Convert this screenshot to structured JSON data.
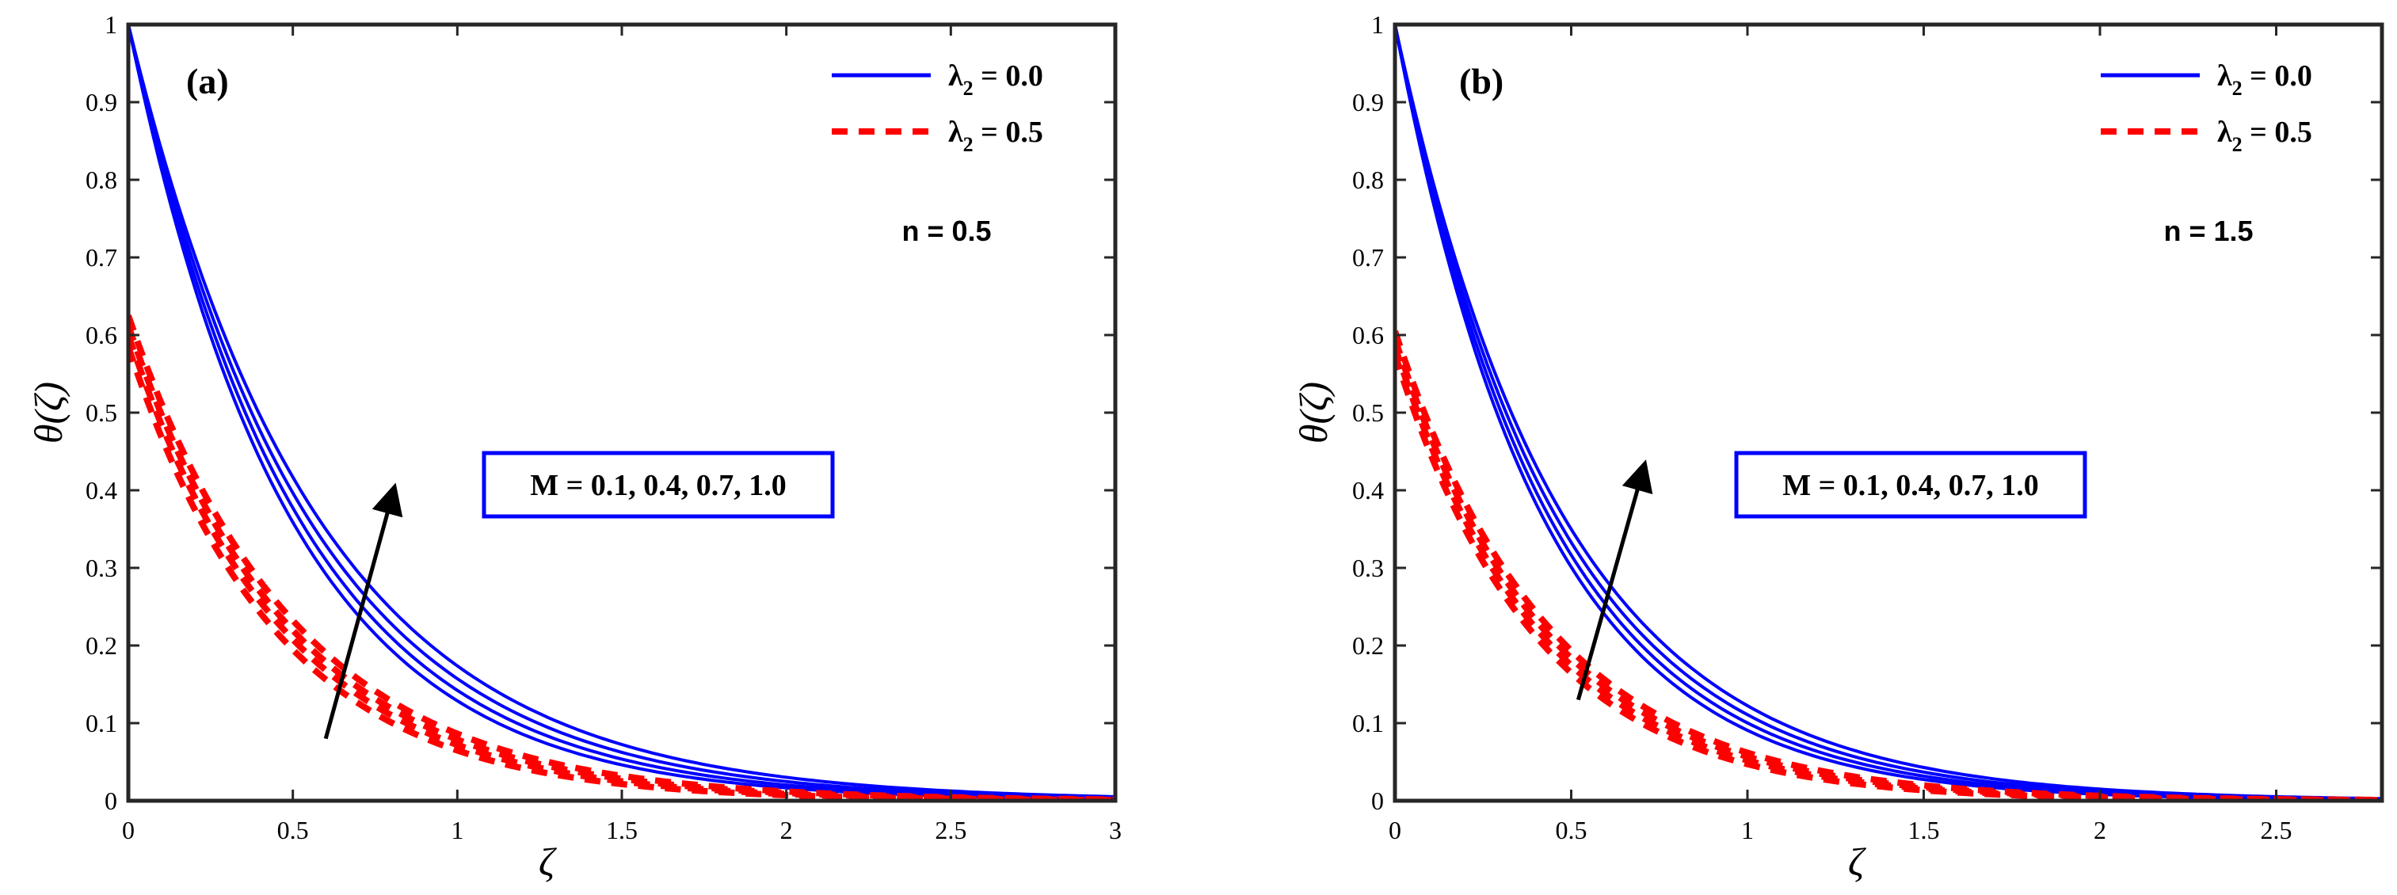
{
  "chart_data": [
    {
      "type": "line",
      "panel_label": "(a)",
      "param_text": "n = 0.5",
      "annotation": "M = 0.1, 0.4, 0.7, 1.0",
      "xlabel": "ζ",
      "ylabel": "θ(ζ)",
      "xlim": [
        0,
        3
      ],
      "ylim": [
        0,
        1
      ],
      "xticks": [
        "0",
        "0.5",
        "1",
        "1.5",
        "2",
        "2.5",
        "3"
      ],
      "yticks": [
        "0",
        "0.1",
        "0.2",
        "0.3",
        "0.4",
        "0.5",
        "0.6",
        "0.7",
        "0.8",
        "0.9",
        "1"
      ],
      "legend": [
        {
          "name": "λ",
          "sub": "2",
          "value": " = 0.0",
          "color": "#0000ff",
          "style": "solid"
        },
        {
          "name": "λ",
          "sub": "2",
          "value": " = 0.5",
          "color": "#ff0000",
          "style": "dashed"
        }
      ],
      "series": [
        {
          "name": "λ2 = 0.0, M = 0.1",
          "color": "#0000ff",
          "style": "solid",
          "y0": 1.0,
          "decay": 2.05
        },
        {
          "name": "λ2 = 0.0, M = 0.4",
          "color": "#0000ff",
          "style": "solid",
          "y0": 1.0,
          "decay": 1.95
        },
        {
          "name": "λ2 = 0.0, M = 0.7",
          "color": "#0000ff",
          "style": "solid",
          "y0": 1.0,
          "decay": 1.85
        },
        {
          "name": "λ2 = 0.0, M = 1.0",
          "color": "#0000ff",
          "style": "solid",
          "y0": 1.0,
          "decay": 1.75
        },
        {
          "name": "λ2 = 0.5, M = 0.1",
          "color": "#ff0000",
          "style": "dashed",
          "y0": 0.585,
          "decay": 2.2
        },
        {
          "name": "λ2 = 0.5, M = 0.4",
          "color": "#ff0000",
          "style": "dashed",
          "y0": 0.6,
          "decay": 2.12
        },
        {
          "name": "λ2 = 0.5, M = 0.7",
          "color": "#ff0000",
          "style": "dashed",
          "y0": 0.612,
          "decay": 2.05
        },
        {
          "name": "λ2 = 0.5, M = 1.0",
          "color": "#ff0000",
          "style": "dashed",
          "y0": 0.625,
          "decay": 1.98
        }
      ],
      "arrow": {
        "from": [
          0.6,
          0.08
        ],
        "to": [
          0.8,
          0.39
        ]
      }
    },
    {
      "type": "line",
      "panel_label": "(b)",
      "param_text": "n = 1.5",
      "annotation": "M = 0.1, 0.4, 0.7, 1.0",
      "xlabel": "ζ",
      "ylabel": "θ(ζ)",
      "xlim": [
        0,
        2.8
      ],
      "ylim": [
        0,
        1
      ],
      "xticks": [
        "0",
        "0.5",
        "1",
        "1.5",
        "2",
        "2.5"
      ],
      "yticks": [
        "0",
        "0.1",
        "0.2",
        "0.3",
        "0.4",
        "0.5",
        "0.6",
        "0.7",
        "0.8",
        "0.9",
        "1"
      ],
      "legend": [
        {
          "name": "λ",
          "sub": "2",
          "value": " = 0.0",
          "color": "#0000ff",
          "style": "solid"
        },
        {
          "name": "λ",
          "sub": "2",
          "value": " = 0.5",
          "color": "#ff0000",
          "style": "dashed"
        }
      ],
      "series": [
        {
          "name": "λ2 = 0.0, M = 0.1",
          "color": "#0000ff",
          "style": "solid",
          "y0": 1.0,
          "decay": 2.4
        },
        {
          "name": "λ2 = 0.0, M = 0.4",
          "color": "#0000ff",
          "style": "solid",
          "y0": 1.0,
          "decay": 2.3
        },
        {
          "name": "λ2 = 0.0, M = 0.7",
          "color": "#0000ff",
          "style": "solid",
          "y0": 1.0,
          "decay": 2.2
        },
        {
          "name": "λ2 = 0.0, M = 1.0",
          "color": "#0000ff",
          "style": "solid",
          "y0": 1.0,
          "decay": 2.1
        },
        {
          "name": "λ2 = 0.5, M = 0.1",
          "color": "#ff0000",
          "style": "dashed",
          "y0": 0.575,
          "decay": 2.5
        },
        {
          "name": "λ2 = 0.5, M = 0.4",
          "color": "#ff0000",
          "style": "dashed",
          "y0": 0.585,
          "decay": 2.42
        },
        {
          "name": "λ2 = 0.5, M = 0.7",
          "color": "#ff0000",
          "style": "dashed",
          "y0": 0.595,
          "decay": 2.35
        },
        {
          "name": "λ2 = 0.5, M = 1.0",
          "color": "#ff0000",
          "style": "dashed",
          "y0": 0.605,
          "decay": 2.28
        }
      ],
      "arrow": {
        "from": [
          0.52,
          0.13
        ],
        "to": [
          0.7,
          0.42
        ]
      }
    }
  ]
}
